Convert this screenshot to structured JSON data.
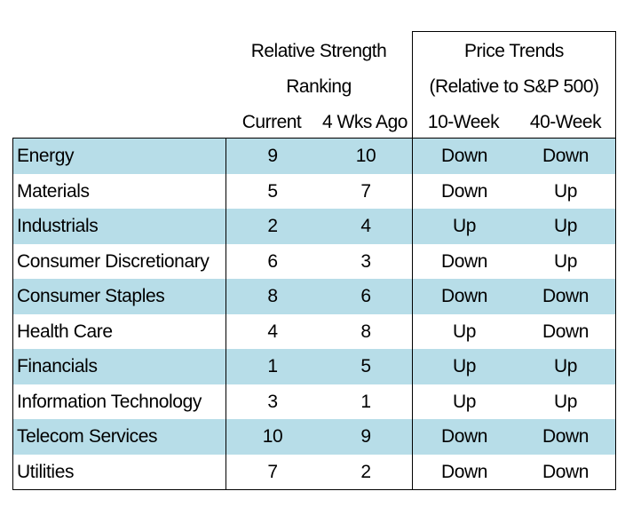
{
  "headers": {
    "relative_strength_line1": "Relative Strength",
    "relative_strength_line2": "Ranking",
    "price_trends_line1": "Price Trends",
    "price_trends_line2": "(Relative to S&P 500)",
    "current": "Current",
    "four_wks_ago": "4 Wks Ago",
    "ten_week": "10-Week",
    "forty_week": "40-Week"
  },
  "colors": {
    "shaded_row": "#b7dde8",
    "border": "#000000"
  },
  "rows": [
    {
      "sector": "Energy",
      "current": "9",
      "four_wks_ago": "10",
      "ten_week": "Down",
      "forty_week": "Down"
    },
    {
      "sector": "Materials",
      "current": "5",
      "four_wks_ago": "7",
      "ten_week": "Down",
      "forty_week": "Up"
    },
    {
      "sector": "Industrials",
      "current": "2",
      "four_wks_ago": "4",
      "ten_week": "Up",
      "forty_week": "Up"
    },
    {
      "sector": "Consumer Discretionary",
      "current": "6",
      "four_wks_ago": "3",
      "ten_week": "Down",
      "forty_week": "Up"
    },
    {
      "sector": "Consumer Staples",
      "current": "8",
      "four_wks_ago": "6",
      "ten_week": "Down",
      "forty_week": "Down"
    },
    {
      "sector": "Health Care",
      "current": "4",
      "four_wks_ago": "8",
      "ten_week": "Up",
      "forty_week": "Down"
    },
    {
      "sector": "Financials",
      "current": "1",
      "four_wks_ago": "5",
      "ten_week": "Up",
      "forty_week": "Up"
    },
    {
      "sector": "Information Technology",
      "current": "3",
      "four_wks_ago": "1",
      "ten_week": "Up",
      "forty_week": "Up"
    },
    {
      "sector": "Telecom Services",
      "current": "10",
      "four_wks_ago": "9",
      "ten_week": "Down",
      "forty_week": "Down"
    },
    {
      "sector": "Utilities",
      "current": "7",
      "four_wks_ago": "2",
      "ten_week": "Down",
      "forty_week": "Down"
    }
  ]
}
